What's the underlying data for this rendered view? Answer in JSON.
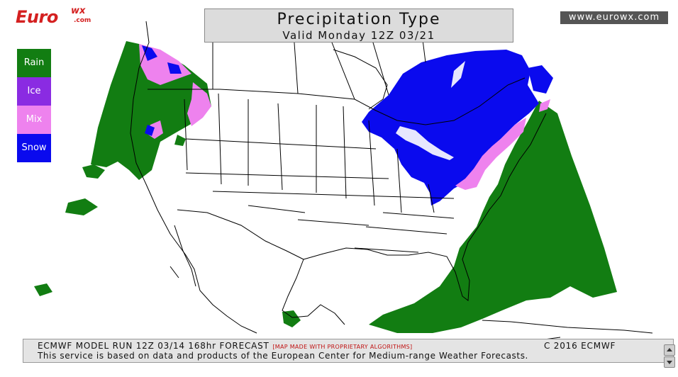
{
  "logo": {
    "main": "Euro",
    "sup": "wx",
    "sub": ".com"
  },
  "title": {
    "main": "Precipitation Type",
    "valid": "Valid Monday 12Z 03/21"
  },
  "site_url": "www.eurowx.com",
  "legend": [
    {
      "label": "Rain",
      "color": "#127d12"
    },
    {
      "label": "Ice",
      "color": "#8a2be2"
    },
    {
      "label": "Mix",
      "color": "#ee82ee"
    },
    {
      "label": "Snow",
      "color": "#0a0aee"
    }
  ],
  "footer": {
    "run": "ECMWF MODEL RUN 12Z 03/14 168hr FORECAST",
    "note": "[MAP MADE WITH PROPRIETARY ALGORITHMS]",
    "copyright": "C 2016 ECMWF",
    "disclaimer": "This service is based on data and products of the European Center for Medium-range Weather Forecasts."
  }
}
